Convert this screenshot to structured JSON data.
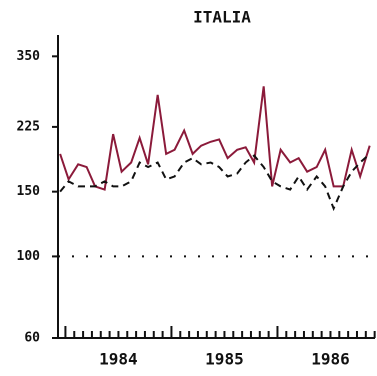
{
  "chart_data": {
    "type": "line",
    "title": "ITALIA",
    "log_scale": true,
    "xlim": [
      1983.93,
      1986.92
    ],
    "xticks": [
      {
        "value": 1984.5,
        "label": "1984"
      },
      {
        "value": 1985.5,
        "label": "1985"
      },
      {
        "value": 1986.5,
        "label": "1986"
      }
    ],
    "ylim": [
      60,
      400
    ],
    "yticks": [
      60,
      100,
      150,
      225,
      350
    ],
    "reference_line": 100,
    "x": [
      1983.95,
      1984.03,
      1984.12,
      1984.2,
      1984.28,
      1984.37,
      1984.45,
      1984.53,
      1984.62,
      1984.7,
      1984.78,
      1984.87,
      1984.95,
      1985.03,
      1985.12,
      1985.2,
      1985.28,
      1985.37,
      1985.45,
      1985.53,
      1985.62,
      1985.7,
      1985.78,
      1985.87,
      1985.95,
      1986.03,
      1986.12,
      1986.2,
      1986.28,
      1986.37,
      1986.45,
      1986.53,
      1986.62,
      1986.7,
      1986.78,
      1986.87
    ],
    "series": [
      {
        "color": "#8b1a3a",
        "style": "solid",
        "values": [
          190,
          162,
          178,
          175,
          155,
          152,
          215,
          170,
          180,
          210,
          178,
          275,
          190,
          195,
          220,
          190,
          200,
          205,
          208,
          185,
          195,
          198,
          180,
          290,
          155,
          195,
          180,
          185,
          170,
          175,
          195,
          155,
          155,
          195,
          165,
          200
        ]
      },
      {
        "color": "#111111",
        "style": "dashed",
        "values": [
          150,
          160,
          155,
          155,
          155,
          160,
          155,
          155,
          160,
          180,
          175,
          180,
          162,
          165,
          180,
          185,
          178,
          180,
          175,
          165,
          168,
          180,
          188,
          175,
          160,
          155,
          152,
          165,
          152,
          165,
          155,
          135,
          155,
          170,
          180,
          190
        ]
      }
    ]
  }
}
